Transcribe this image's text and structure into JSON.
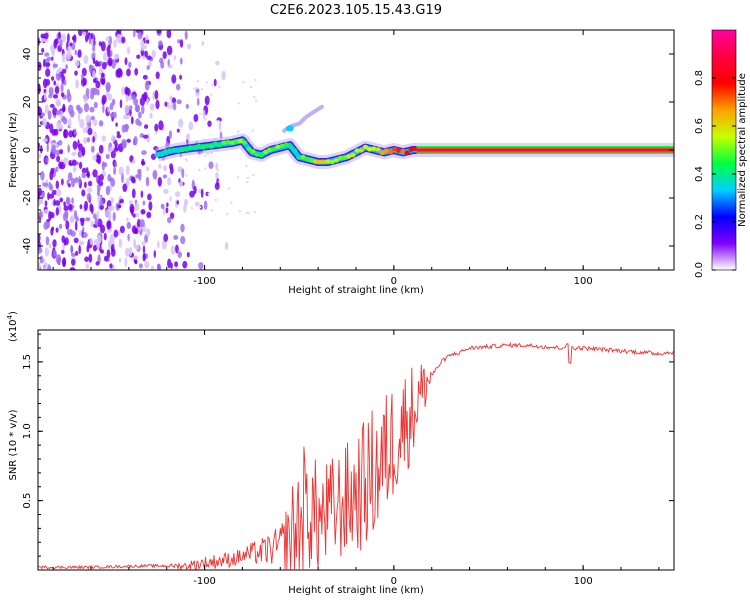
{
  "title": "C2E6.2023.105.15.43.G19",
  "chart_data": [
    {
      "type": "heatmap",
      "name": "spectrogram",
      "xlabel": "Height of straight line (km)",
      "ylabel": "Frequency (Hz)",
      "xlim": [
        -188,
        148
      ],
      "ylim": [
        -50,
        50
      ],
      "xticks": [
        -100,
        0,
        100
      ],
      "yticks": [
        -40,
        -20,
        0,
        20,
        40
      ],
      "colorbar": {
        "label": "Normalized spectral amplitude",
        "ticks": [
          0.0,
          0.2,
          0.4,
          0.6,
          0.8
        ],
        "range": [
          0,
          1
        ],
        "stops": [
          "#ffffff",
          "#7f00ff",
          "#0000ff",
          "#00d0ff",
          "#00ff40",
          "#c8ff00",
          "#ffa000",
          "#ff0000",
          "#ff0040",
          "#ff00a0"
        ]
      },
      "ridge": {
        "x": [
          -125,
          -115,
          -105,
          -95,
          -85,
          -80,
          -75,
          -70,
          -65,
          -60,
          -55,
          -50,
          -45,
          -40,
          -35,
          -30,
          -25,
          -20,
          -15,
          -10,
          -5,
          0,
          5,
          10,
          148
        ],
        "freq": [
          -2,
          0,
          1,
          2,
          3,
          4,
          -1,
          -2,
          0,
          1,
          2,
          -3,
          -4,
          -5,
          -5,
          -4,
          -3,
          -1,
          1,
          0,
          -1,
          0,
          -1,
          0,
          0
        ],
        "amplitude": [
          0.35,
          0.4,
          0.4,
          0.45,
          0.5,
          0.5,
          0.45,
          0.5,
          0.5,
          0.45,
          0.4,
          0.45,
          0.5,
          0.6,
          0.55,
          0.55,
          0.5,
          0.55,
          0.6,
          0.6,
          0.65,
          0.7,
          0.75,
          0.85,
          0.95
        ]
      },
      "branch": {
        "x": [
          -58,
          -54,
          -50,
          -46,
          -42,
          -38
        ],
        "freq": [
          8,
          10,
          11,
          14,
          16,
          18
        ]
      }
    },
    {
      "type": "line",
      "name": "snr",
      "xlabel": "Height of straight line (km)",
      "ylabel": "SNR (10 * v/v)",
      "yscale_label": "(x10",
      "yscale_exp": "4",
      "ylim_x1e4": [
        0,
        1.73
      ],
      "xlim": [
        -188,
        148
      ],
      "xticks": [
        -100,
        0,
        100
      ],
      "yticks": [
        0.5,
        1.0,
        1.5
      ],
      "series": {
        "name": "SNR",
        "color": "#ee3333",
        "x": [
          -188,
          -160,
          -130,
          -110,
          -100,
          -95,
          -90,
          -85,
          -80,
          -75,
          -70,
          -65,
          -60,
          -55,
          -50,
          -48,
          -45,
          -42,
          -40,
          -35,
          -30,
          -25,
          -20,
          -15,
          -10,
          -5,
          0,
          5,
          10,
          15,
          20,
          25,
          30,
          35,
          40,
          50,
          60,
          70,
          80,
          88,
          92,
          95,
          100,
          110,
          120,
          130,
          140,
          148
        ],
        "y_x1e4": [
          0.02,
          0.02,
          0.03,
          0.03,
          0.05,
          0.06,
          0.07,
          0.08,
          0.1,
          0.12,
          0.13,
          0.15,
          0.18,
          0.22,
          0.3,
          0.4,
          0.45,
          0.4,
          0.35,
          0.4,
          0.45,
          0.5,
          0.55,
          0.62,
          0.7,
          0.8,
          0.95,
          1.05,
          1.15,
          1.3,
          1.4,
          1.5,
          1.55,
          1.57,
          1.6,
          1.61,
          1.62,
          1.62,
          1.61,
          1.6,
          1.62,
          1.6,
          1.6,
          1.59,
          1.58,
          1.57,
          1.56,
          1.57
        ]
      },
      "noise_band": {
        "x": [
          -188,
          -120,
          -100,
          -80,
          -60,
          -50,
          -40,
          -30,
          -20,
          -10,
          0,
          10,
          20,
          30,
          148
        ],
        "amp_x1e4": [
          0.01,
          0.01,
          0.05,
          0.06,
          0.14,
          0.55,
          0.4,
          0.4,
          0.45,
          0.5,
          0.45,
          0.35,
          0.1,
          0.04,
          0.03
        ]
      }
    }
  ]
}
